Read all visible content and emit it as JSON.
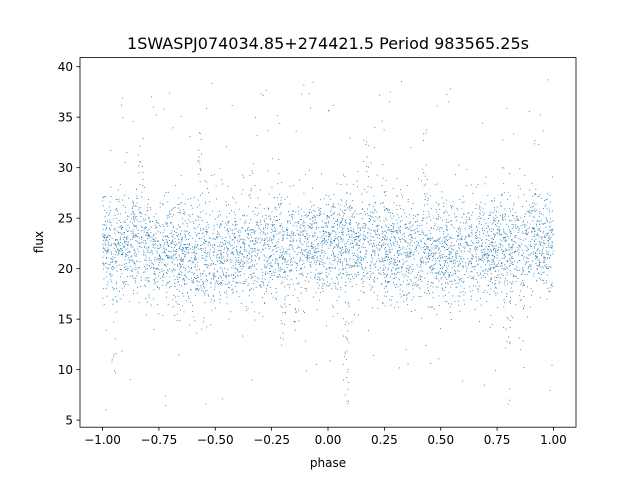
{
  "chart_data": {
    "type": "scatter",
    "title": "1SWASPJ074034.85+274421.5 Period 983565.25s",
    "xlabel": "phase",
    "ylabel": "flux",
    "xlim": [
      -1.1,
      1.1
    ],
    "ylim": [
      4.3,
      40.9
    ],
    "xticks": [
      -1.0,
      -0.75,
      -0.5,
      -0.25,
      0.0,
      0.25,
      0.5,
      0.75,
      1.0
    ],
    "xtick_labels": [
      "−1.00",
      "−0.75",
      "−0.50",
      "−0.25",
      "0.00",
      "0.25",
      "0.50",
      "0.75",
      "1.00"
    ],
    "yticks": [
      5,
      10,
      15,
      20,
      25,
      30,
      35,
      40
    ],
    "ytick_labels": [
      "5",
      "10",
      "15",
      "20",
      "25",
      "30",
      "35",
      "40"
    ],
    "grid": false,
    "legend": "none",
    "point_color": "#1f77b4",
    "series": [
      {
        "points_summary": {
          "x_range": [
            -1.0,
            1.0
          ],
          "typical_flux_range": [
            17,
            27
          ],
          "median_flux": 22,
          "outlier_flux_range": [
            5.8,
            38.8
          ],
          "symmetric_about_phase": 0.0,
          "features": [
            {
              "phase": -0.57,
              "flux_peak": 33.8
            },
            {
              "phase": 0.43,
              "flux_peak": 33.8
            },
            {
              "phase": -0.83,
              "flux_peak": 33
            },
            {
              "phase": 0.17,
              "flux_peak": 33
            },
            {
              "phase": -0.2,
              "flux_dip": 11.5
            },
            {
              "phase": 0.8,
              "flux_dip": 11.5
            },
            {
              "phase": -0.14,
              "flux_dip": 11.5
            },
            {
              "phase": 0.86,
              "flux_dip": 11.5
            },
            {
              "phase": -0.95,
              "flux_dip": 5.8
            },
            {
              "phase": 0.08,
              "flux_dip": 6.5
            }
          ]
        }
      }
    ]
  }
}
